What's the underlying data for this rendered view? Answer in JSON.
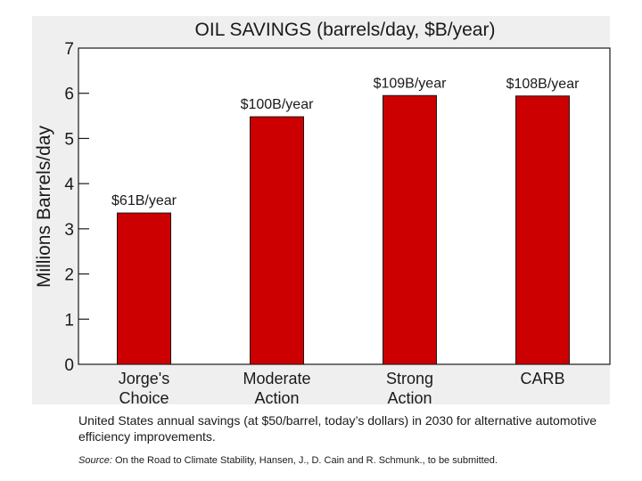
{
  "chart_data": {
    "type": "bar",
    "title": "OIL SAVINGS (barrels/day, $B/year)",
    "xlabel": "",
    "ylabel": "Millions Barrels/day",
    "ylim": [
      0,
      7
    ],
    "yticks": [
      "0",
      "1",
      "2",
      "3",
      "4",
      "5",
      "6",
      "7"
    ],
    "grid": false,
    "categories": [
      [
        "Jorge's",
        "Choice"
      ],
      [
        "Moderate",
        "Action"
      ],
      [
        "Strong",
        "Action"
      ],
      [
        "CARB"
      ]
    ],
    "values": [
      3.35,
      5.48,
      5.95,
      5.94
    ],
    "data_labels": [
      "$61B/year",
      "$100B/year",
      "$109B/year",
      "$108B/year"
    ],
    "bar_color": "#cc0000"
  },
  "caption": "United States annual savings (at $50/barrel, today’s dollars) in 2030 for alternative automotive efficiency improvements.",
  "source": {
    "label": "Source:",
    "text": " On the Road to Climate Stability, Hansen, J., D. Cain and R. Schmunk., to be submitted."
  }
}
